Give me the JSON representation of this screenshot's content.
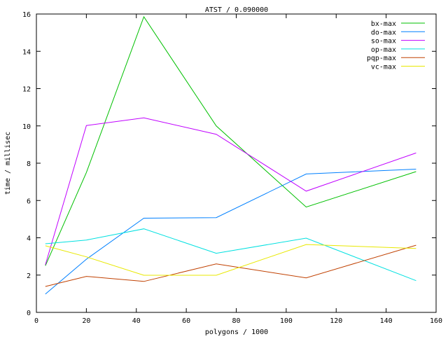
{
  "chart_data": {
    "type": "line",
    "title": "ATST / 0.090000",
    "xlabel": "polygons / 1000",
    "ylabel": "time / millisec",
    "xlim": [
      0,
      160
    ],
    "ylim": [
      0,
      16
    ],
    "xticks": [
      0,
      20,
      40,
      60,
      80,
      100,
      120,
      140,
      160
    ],
    "yticks": [
      0,
      2,
      4,
      6,
      8,
      10,
      12,
      14,
      16
    ],
    "grid": false,
    "legend_position": "top-right",
    "x": [
      3.6,
      20,
      43,
      72,
      108,
      152
    ],
    "series": [
      {
        "name": "bx-max",
        "color": "#00c000",
        "values": [
          2.5,
          7.5,
          15.85,
          10.0,
          5.65,
          7.55
        ]
      },
      {
        "name": "do-max",
        "color": "#0080ff",
        "values": [
          0.98,
          2.85,
          5.05,
          5.08,
          7.42,
          7.68
        ]
      },
      {
        "name": "so-max",
        "color": "#c000ff",
        "values": [
          2.55,
          10.02,
          10.43,
          9.55,
          6.5,
          8.55
        ]
      },
      {
        "name": "op-max",
        "color": "#00e0e0",
        "values": [
          3.68,
          3.88,
          4.48,
          3.17,
          3.98,
          1.7
        ]
      },
      {
        "name": "pqp-max",
        "color": "#c04000",
        "values": [
          1.39,
          1.93,
          1.66,
          2.6,
          1.85,
          3.6
        ]
      },
      {
        "name": "vc-max",
        "color": "#e8e800",
        "values": [
          3.57,
          2.98,
          1.99,
          1.99,
          3.64,
          3.43
        ]
      }
    ]
  }
}
